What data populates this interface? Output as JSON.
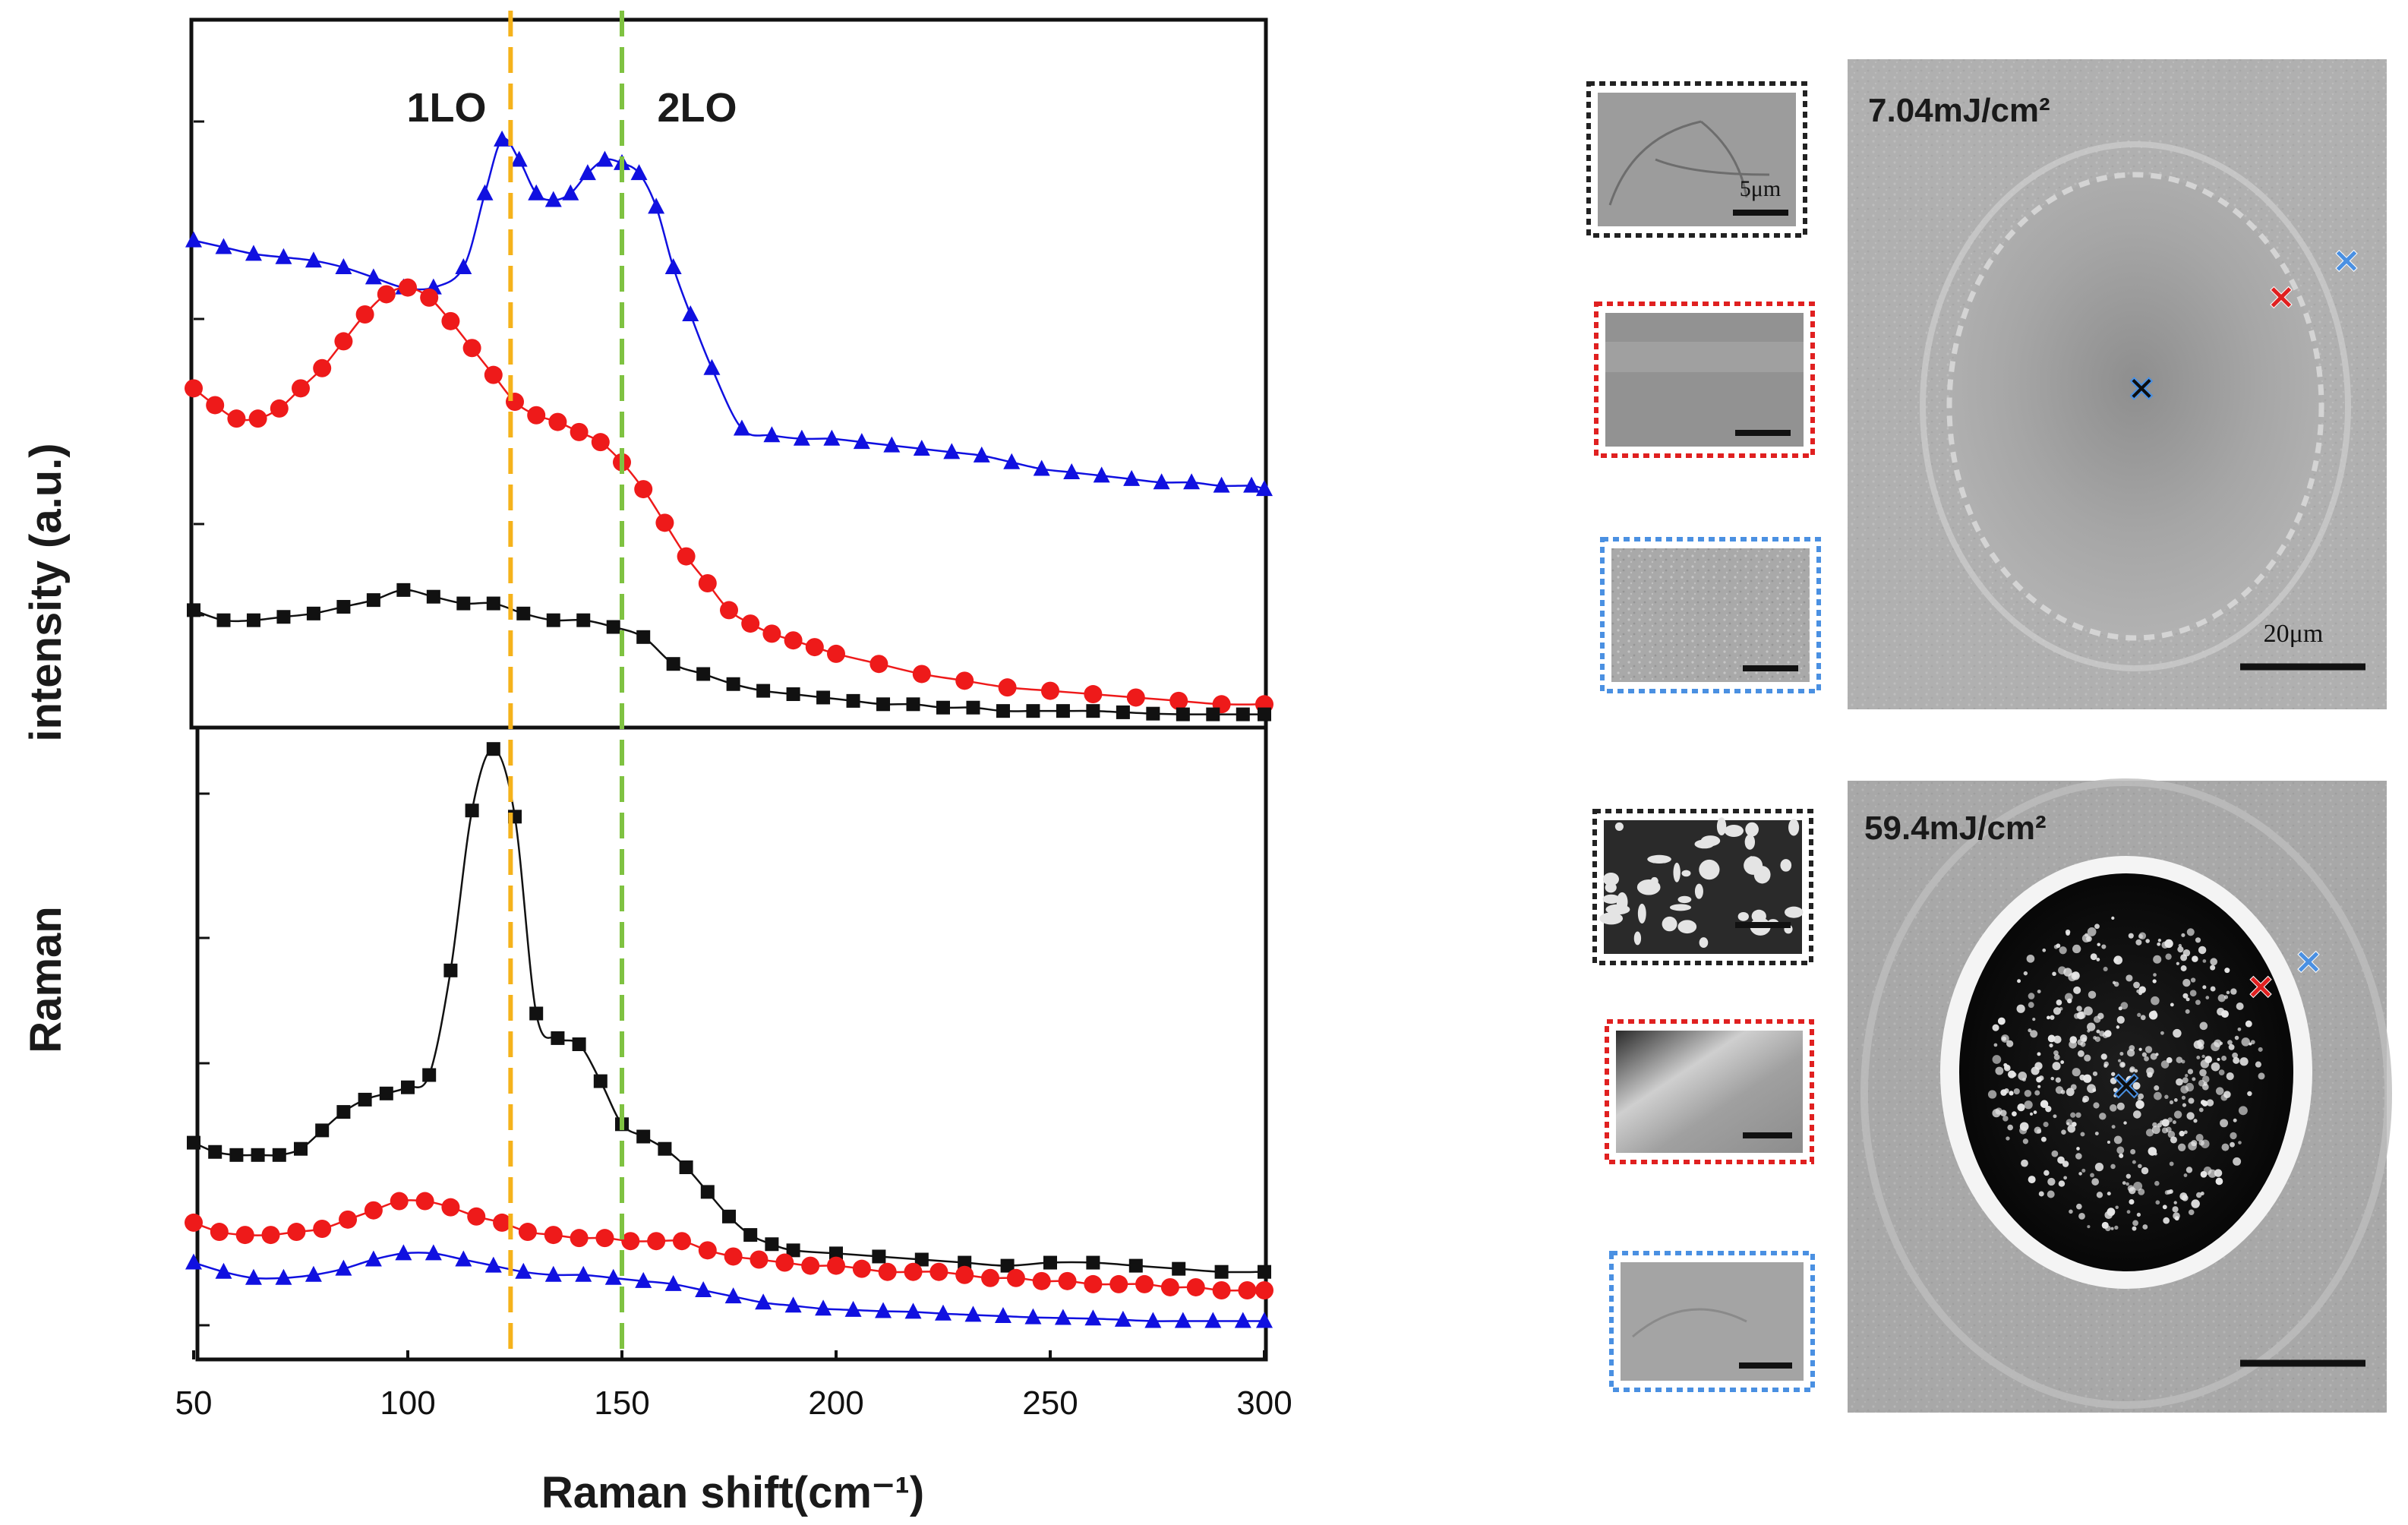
{
  "chart_data": [
    {
      "type": "line",
      "panel": "top",
      "title": "",
      "xlabel": "Raman shift(cm⁻¹)",
      "ylabel_line1": "Raman",
      "ylabel_line2": "intensity  (a.u.)",
      "xlim": [
        50,
        300
      ],
      "ylim": [
        0,
        1
      ],
      "xticks": [
        50,
        100,
        150,
        200,
        250,
        300
      ],
      "annotations": [
        {
          "label": "1LO",
          "x": 124,
          "color": "#f5b21b"
        },
        {
          "label": "2LO",
          "x": 150,
          "color": "#7fc241"
        }
      ],
      "series": [
        {
          "name": "blue",
          "color": "#1010e0",
          "marker": "triangle",
          "x": [
            50,
            57,
            64,
            71,
            78,
            85,
            92,
            99,
            106,
            113,
            118,
            122,
            126,
            130,
            134,
            138,
            142,
            146,
            150,
            154,
            158,
            162,
            166,
            171,
            178,
            185,
            192,
            199,
            206,
            213,
            220,
            227,
            234,
            241,
            248,
            255,
            262,
            269,
            276,
            283,
            290,
            297,
            300
          ],
          "y": [
            0.71,
            0.7,
            0.69,
            0.685,
            0.68,
            0.67,
            0.655,
            0.64,
            0.64,
            0.67,
            0.78,
            0.86,
            0.83,
            0.78,
            0.77,
            0.78,
            0.81,
            0.83,
            0.825,
            0.81,
            0.76,
            0.67,
            0.6,
            0.52,
            0.43,
            0.42,
            0.415,
            0.415,
            0.41,
            0.405,
            0.4,
            0.395,
            0.39,
            0.38,
            0.37,
            0.365,
            0.36,
            0.355,
            0.35,
            0.35,
            0.345,
            0.345,
            0.34
          ]
        },
        {
          "name": "red",
          "color": "#ee1a1a",
          "marker": "circle",
          "x": [
            50,
            55,
            60,
            65,
            70,
            75,
            80,
            85,
            90,
            95,
            100,
            105,
            110,
            115,
            120,
            125,
            130,
            135,
            140,
            145,
            150,
            155,
            160,
            165,
            170,
            175,
            180,
            185,
            190,
            195,
            200,
            210,
            220,
            230,
            240,
            250,
            260,
            270,
            280,
            290,
            300
          ],
          "y": [
            0.49,
            0.465,
            0.445,
            0.445,
            0.46,
            0.49,
            0.52,
            0.56,
            0.6,
            0.63,
            0.64,
            0.625,
            0.59,
            0.55,
            0.51,
            0.47,
            0.45,
            0.44,
            0.425,
            0.41,
            0.38,
            0.34,
            0.29,
            0.24,
            0.2,
            0.16,
            0.14,
            0.125,
            0.115,
            0.105,
            0.095,
            0.08,
            0.065,
            0.055,
            0.045,
            0.04,
            0.035,
            0.03,
            0.025,
            0.02,
            0.02
          ]
        },
        {
          "name": "black",
          "color": "#111111",
          "marker": "square",
          "x": [
            50,
            57,
            64,
            71,
            78,
            85,
            92,
            99,
            106,
            113,
            120,
            127,
            134,
            141,
            148,
            155,
            162,
            169,
            176,
            183,
            190,
            197,
            204,
            211,
            218,
            225,
            232,
            239,
            246,
            253,
            260,
            267,
            274,
            281,
            288,
            295,
            300
          ],
          "y": [
            0.16,
            0.145,
            0.145,
            0.15,
            0.155,
            0.165,
            0.175,
            0.19,
            0.18,
            0.17,
            0.17,
            0.155,
            0.145,
            0.145,
            0.135,
            0.12,
            0.08,
            0.065,
            0.05,
            0.04,
            0.035,
            0.03,
            0.025,
            0.02,
            0.02,
            0.015,
            0.015,
            0.01,
            0.01,
            0.01,
            0.01,
            0.008,
            0.006,
            0.005,
            0.005,
            0.005,
            0.005
          ]
        }
      ]
    },
    {
      "type": "line",
      "panel": "bottom",
      "title": "",
      "xlabel": "Raman shift(cm⁻¹)",
      "xlim": [
        50,
        300
      ],
      "ylim": [
        0,
        1
      ],
      "xticks": [
        50,
        100,
        150,
        200,
        250,
        300
      ],
      "series": [
        {
          "name": "black",
          "color": "#111111",
          "marker": "square",
          "x": [
            50,
            55,
            60,
            65,
            70,
            75,
            80,
            85,
            90,
            95,
            100,
            105,
            110,
            115,
            120,
            125,
            130,
            135,
            140,
            145,
            150,
            155,
            160,
            165,
            170,
            175,
            180,
            185,
            190,
            200,
            210,
            220,
            230,
            240,
            250,
            260,
            270,
            280,
            290,
            300
          ],
          "y": [
            0.34,
            0.325,
            0.32,
            0.32,
            0.32,
            0.33,
            0.36,
            0.39,
            0.41,
            0.42,
            0.43,
            0.45,
            0.62,
            0.88,
            0.98,
            0.87,
            0.55,
            0.51,
            0.5,
            0.44,
            0.37,
            0.35,
            0.33,
            0.3,
            0.26,
            0.22,
            0.19,
            0.175,
            0.165,
            0.16,
            0.155,
            0.15,
            0.145,
            0.14,
            0.145,
            0.145,
            0.14,
            0.135,
            0.13,
            0.13
          ]
        },
        {
          "name": "red",
          "color": "#ee1a1a",
          "marker": "circle",
          "x": [
            50,
            56,
            62,
            68,
            74,
            80,
            86,
            92,
            98,
            104,
            110,
            116,
            122,
            128,
            134,
            140,
            146,
            152,
            158,
            164,
            170,
            176,
            182,
            188,
            194,
            200,
            206,
            212,
            218,
            224,
            230,
            236,
            242,
            248,
            254,
            260,
            266,
            272,
            278,
            284,
            290,
            296,
            300
          ],
          "y": [
            0.21,
            0.195,
            0.19,
            0.19,
            0.195,
            0.2,
            0.215,
            0.23,
            0.245,
            0.245,
            0.235,
            0.22,
            0.21,
            0.195,
            0.19,
            0.185,
            0.185,
            0.18,
            0.18,
            0.18,
            0.165,
            0.155,
            0.15,
            0.145,
            0.14,
            0.14,
            0.135,
            0.13,
            0.13,
            0.13,
            0.125,
            0.12,
            0.12,
            0.115,
            0.115,
            0.11,
            0.11,
            0.11,
            0.105,
            0.105,
            0.1,
            0.1,
            0.1
          ]
        },
        {
          "name": "blue",
          "color": "#1010e0",
          "marker": "triangle",
          "x": [
            50,
            57,
            64,
            71,
            78,
            85,
            92,
            99,
            106,
            113,
            120,
            127,
            134,
            141,
            148,
            155,
            162,
            169,
            176,
            183,
            190,
            197,
            204,
            211,
            218,
            225,
            232,
            239,
            246,
            253,
            260,
            267,
            274,
            281,
            288,
            295,
            300
          ],
          "y": [
            0.145,
            0.13,
            0.12,
            0.12,
            0.125,
            0.135,
            0.15,
            0.16,
            0.16,
            0.15,
            0.14,
            0.13,
            0.125,
            0.125,
            0.12,
            0.115,
            0.11,
            0.1,
            0.09,
            0.08,
            0.075,
            0.07,
            0.068,
            0.066,
            0.065,
            0.062,
            0.06,
            0.058,
            0.056,
            0.055,
            0.054,
            0.052,
            0.05,
            0.05,
            0.05,
            0.05,
            0.05
          ]
        }
      ]
    }
  ],
  "images": {
    "top": {
      "fluence": "7.04mJ/cm²",
      "scale_label": "20μm",
      "inset_scale_label": "5μm",
      "inset_frames": [
        "black",
        "red",
        "blue"
      ]
    },
    "bottom": {
      "fluence": "59.4mJ/cm²",
      "inset_frames": [
        "black",
        "red",
        "blue"
      ]
    }
  },
  "colors": {
    "frame_black": "#222222",
    "frame_red": "#e02020",
    "frame_blue": "#4a90e2",
    "sem_gray": "#b4b4b4"
  }
}
